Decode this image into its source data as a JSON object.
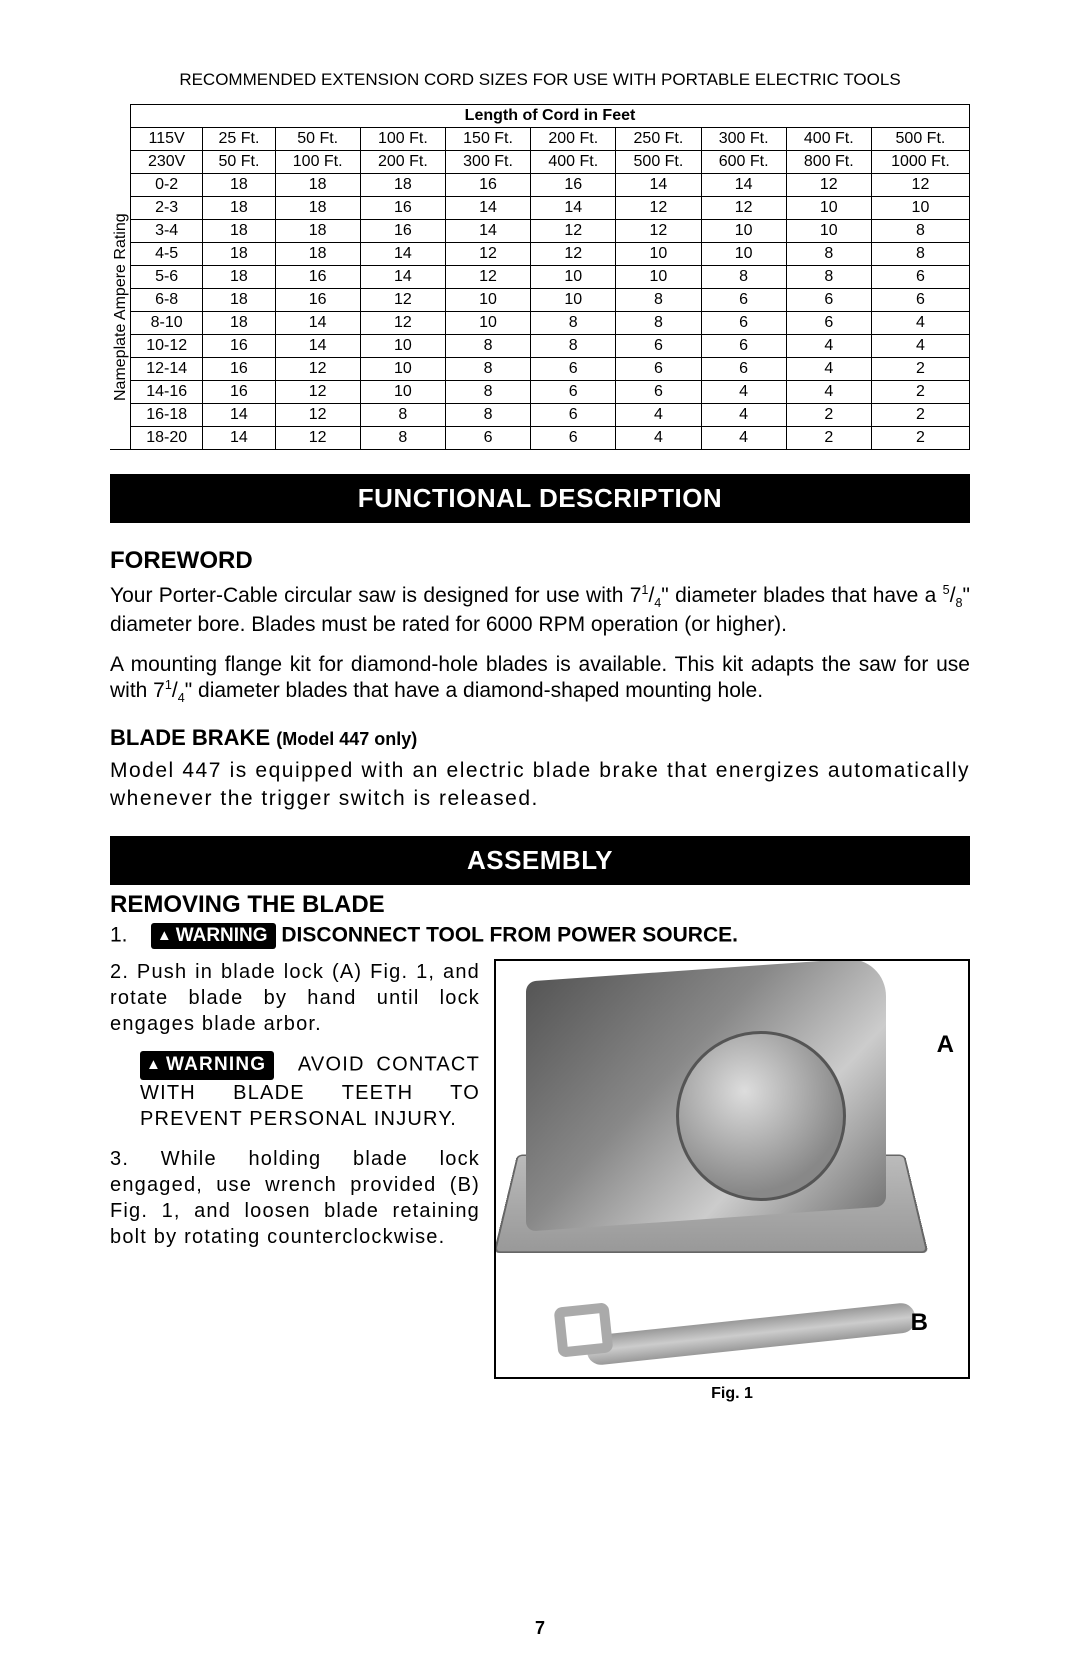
{
  "table_title": "RECOMMENDED EXTENSION CORD SIZES FOR USE WITH PORTABLE ELECTRIC TOOLS",
  "table": {
    "header_span": "Length of Cord in Feet",
    "v_label": "Nameplate Ampere Rating",
    "row_115_label": "115V",
    "row_115": [
      "25 Ft.",
      "50 Ft.",
      "100 Ft.",
      "150 Ft.",
      "200 Ft.",
      "250 Ft.",
      "300 Ft.",
      "400 Ft.",
      "500 Ft."
    ],
    "row_230_label": "230V",
    "row_230": [
      "50 Ft.",
      "100 Ft.",
      "200 Ft.",
      "300 Ft.",
      "400 Ft.",
      "500 Ft.",
      "600 Ft.",
      "800 Ft.",
      "1000 Ft."
    ],
    "rows": [
      {
        "amp": "0-2",
        "v": [
          "18",
          "18",
          "18",
          "16",
          "16",
          "14",
          "14",
          "12",
          "12"
        ]
      },
      {
        "amp": "2-3",
        "v": [
          "18",
          "18",
          "16",
          "14",
          "14",
          "12",
          "12",
          "10",
          "10"
        ]
      },
      {
        "amp": "3-4",
        "v": [
          "18",
          "18",
          "16",
          "14",
          "12",
          "12",
          "10",
          "10",
          "8"
        ]
      },
      {
        "amp": "4-5",
        "v": [
          "18",
          "18",
          "14",
          "12",
          "12",
          "10",
          "10",
          "8",
          "8"
        ]
      },
      {
        "amp": "5-6",
        "v": [
          "18",
          "16",
          "14",
          "12",
          "10",
          "10",
          "8",
          "8",
          "6"
        ]
      },
      {
        "amp": "6-8",
        "v": [
          "18",
          "16",
          "12",
          "10",
          "10",
          "8",
          "6",
          "6",
          "6"
        ]
      },
      {
        "amp": "8-10",
        "v": [
          "18",
          "14",
          "12",
          "10",
          "8",
          "8",
          "6",
          "6",
          "4"
        ]
      },
      {
        "amp": "10-12",
        "v": [
          "16",
          "14",
          "10",
          "8",
          "8",
          "6",
          "6",
          "4",
          "4"
        ]
      },
      {
        "amp": "12-14",
        "v": [
          "16",
          "12",
          "10",
          "8",
          "6",
          "6",
          "6",
          "4",
          "2"
        ]
      },
      {
        "amp": "14-16",
        "v": [
          "16",
          "12",
          "10",
          "8",
          "6",
          "6",
          "4",
          "4",
          "2"
        ]
      },
      {
        "amp": "16-18",
        "v": [
          "14",
          "12",
          "8",
          "8",
          "6",
          "4",
          "4",
          "2",
          "2"
        ]
      },
      {
        "amp": "18-20",
        "v": [
          "14",
          "12",
          "8",
          "6",
          "6",
          "4",
          "4",
          "2",
          "2"
        ]
      }
    ]
  },
  "section1": "FUNCTIONAL DESCRIPTION",
  "foreword_h": "FOREWORD",
  "foreword_p1_a": "Your Porter-Cable circular saw is designed for use with 7",
  "foreword_p1_b": "\" diameter blades that have a ",
  "foreword_p1_c": "\" diameter bore. Blades must be rated for 6000 RPM operation (or higher).",
  "foreword_p2_a": "A mounting flange kit for diamond-hole blades is available. This kit adapts the saw for use with 7",
  "foreword_p2_b": "\" diameter blades that have a diamond-shaped mounting hole.",
  "brake_h_big": "BLADE BRAKE ",
  "brake_h_small": "(Model 447 only)",
  "brake_p": "Model 447 is equipped with an electric blade brake that energizes automatically whenever the trigger switch is released.",
  "section2": "ASSEMBLY",
  "removing_h": "REMOVING THE BLADE",
  "warning_label": "WARNING",
  "step1_num": "1.",
  "step1_text": " DISCONNECT TOOL FROM POWER SOURCE.",
  "step2": "2.   Push in blade lock (A) Fig. 1, and rotate blade by hand until lock engages blade arbor.",
  "warn_block": "AVOID CONTACT WITH BLADE TEETH TO PREVENT PERSONAL INJURY.",
  "step3": "3.  While holding blade lock engaged, use wrench provided (B) Fig. 1, and loosen blade retaining bolt by rotating counterclockwise.",
  "callout_a": "A",
  "callout_b": "B",
  "fig_caption": "Fig. 1",
  "page_num": "7",
  "frac_1_4_n": "1",
  "frac_1_4_d": "4",
  "frac_5_8_n": "5",
  "frac_5_8_d": "8",
  "colors": {
    "bg": "#ffffff",
    "fg": "#000000",
    "bar_bg": "#000000",
    "bar_fg": "#ffffff"
  }
}
